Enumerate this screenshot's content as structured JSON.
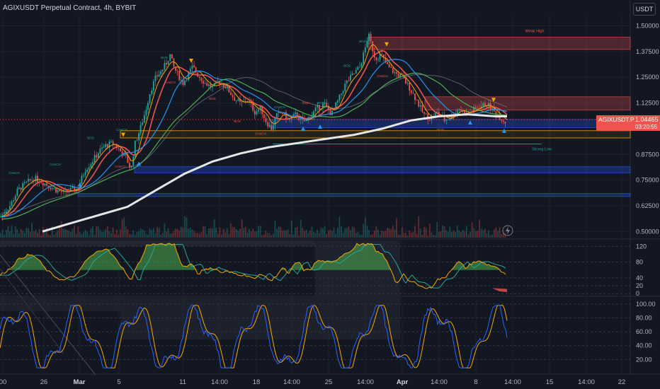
{
  "header": {
    "title": "AGIXUSDT Perpetual Contract, 4h, BYBIT",
    "currency": "USDT"
  },
  "price_tag": {
    "symbol": "AGIXUSDT.P",
    "price": "1.04465",
    "countdown": "03:20:55"
  },
  "colors": {
    "background": "#131722",
    "up": "#26a69a",
    "down": "#ef5350",
    "sma200": "#e6e6e6",
    "accent_blue": "#2962ff"
  },
  "chart_data": [
    {
      "type": "candlestick",
      "panel": "price",
      "y_ticks": [
        "1.50000",
        "1.37500",
        "1.25000",
        "1.12500",
        "0.87500",
        "0.75000",
        "0.62500",
        "0.50000"
      ],
      "ylim": [
        0.47,
        1.55
      ],
      "x_tick_labels": [
        "00",
        "26",
        "Mar",
        "5",
        "11",
        "14:00",
        "18",
        "14:00",
        "25",
        "14:00",
        "Apr",
        "14:00",
        "8",
        "14:00",
        "15",
        "14:00",
        "22"
      ],
      "annotations": [
        "Weak High",
        "Strong Low",
        "BOS",
        "CHoCH",
        "EQH"
      ],
      "close_path": [
        [
          0,
          0.57
        ],
        [
          15,
          0.63
        ],
        [
          25,
          0.7
        ],
        [
          35,
          0.73
        ],
        [
          48,
          0.76
        ],
        [
          60,
          0.74
        ],
        [
          70,
          0.72
        ],
        [
          80,
          0.7
        ],
        [
          90,
          0.69
        ],
        [
          100,
          0.7
        ],
        [
          110,
          0.71
        ],
        [
          120,
          0.8
        ],
        [
          130,
          0.84
        ],
        [
          140,
          0.89
        ],
        [
          150,
          0.92
        ],
        [
          160,
          0.93
        ],
        [
          170,
          0.89
        ],
        [
          178,
          0.86
        ],
        [
          185,
          0.8
        ],
        [
          190,
          0.92
        ],
        [
          198,
          1.0
        ],
        [
          205,
          1.08
        ],
        [
          212,
          1.18
        ],
        [
          220,
          1.25
        ],
        [
          228,
          1.28
        ],
        [
          235,
          1.32
        ],
        [
          240,
          1.36
        ],
        [
          245,
          1.3
        ],
        [
          250,
          1.27
        ],
        [
          258,
          1.22
        ],
        [
          265,
          1.26
        ],
        [
          272,
          1.3
        ],
        [
          280,
          1.26
        ],
        [
          290,
          1.22
        ],
        [
          300,
          1.2
        ],
        [
          310,
          1.23
        ],
        [
          320,
          1.2
        ],
        [
          330,
          1.15
        ],
        [
          340,
          1.12
        ],
        [
          350,
          1.14
        ],
        [
          360,
          1.08
        ],
        [
          368,
          1.1
        ],
        [
          375,
          1.04
        ],
        [
          383,
          1.0
        ],
        [
          390,
          1.06
        ],
        [
          398,
          1.08
        ],
        [
          408,
          1.04
        ],
        [
          418,
          1.07
        ],
        [
          428,
          1.03
        ],
        [
          438,
          1.06
        ],
        [
          448,
          1.1
        ],
        [
          458,
          1.12
        ],
        [
          468,
          1.07
        ],
        [
          478,
          1.14
        ],
        [
          488,
          1.22
        ],
        [
          498,
          1.26
        ],
        [
          508,
          1.3
        ],
        [
          515,
          1.38
        ],
        [
          520,
          1.46
        ],
        [
          525,
          1.4
        ],
        [
          530,
          1.34
        ],
        [
          538,
          1.36
        ],
        [
          548,
          1.3
        ],
        [
          558,
          1.27
        ],
        [
          568,
          1.25
        ],
        [
          578,
          1.2
        ],
        [
          588,
          1.14
        ],
        [
          598,
          1.07
        ],
        [
          608,
          1.05
        ],
        [
          618,
          1.08
        ],
        [
          628,
          1.04
        ],
        [
          638,
          1.06
        ],
        [
          648,
          1.1
        ],
        [
          658,
          1.07
        ],
        [
          668,
          1.09
        ],
        [
          678,
          1.11
        ],
        [
          688,
          1.12
        ],
        [
          698,
          1.08
        ],
        [
          708,
          1.05
        ],
        [
          714,
          1.03
        ]
      ],
      "sma200_path": [
        [
          60,
          0.5
        ],
        [
          100,
          0.54
        ],
        [
          140,
          0.58
        ],
        [
          180,
          0.62
        ],
        [
          220,
          0.7
        ],
        [
          260,
          0.78
        ],
        [
          300,
          0.84
        ],
        [
          340,
          0.88
        ],
        [
          380,
          0.91
        ],
        [
          420,
          0.93
        ],
        [
          460,
          0.95
        ],
        [
          500,
          0.97
        ],
        [
          540,
          1.0
        ],
        [
          580,
          1.04
        ],
        [
          620,
          1.06
        ],
        [
          660,
          1.07
        ],
        [
          700,
          1.06
        ],
        [
          716,
          1.06
        ]
      ],
      "zones": [
        {
          "label": "Weak High",
          "y_top": 1.445,
          "y_bottom": 1.385,
          "x_start": 520,
          "x_end": 890,
          "color": "#ef5350"
        },
        {
          "label": "",
          "y_top": 1.155,
          "y_bottom": 1.09,
          "x_start": 600,
          "x_end": 890,
          "color": "#ef5350"
        },
        {
          "label": "",
          "y_top": 1.045,
          "y_bottom": 1.005,
          "x_start": 380,
          "x_end": 890,
          "color": "#2962ff"
        },
        {
          "label": "",
          "y_top": 0.815,
          "y_bottom": 0.785,
          "x_start": 190,
          "x_end": 890,
          "color": "#2962ff"
        },
        {
          "label": "",
          "y_top": 0.685,
          "y_bottom": 0.67,
          "x_start": 110,
          "x_end": 890,
          "color": "#2962ff"
        }
      ],
      "strong_low": {
        "label": "Strong Low",
        "y": 0.925,
        "x_start": 385,
        "x_end": 765
      },
      "current_price": 1.04465
    },
    {
      "type": "area",
      "panel": "oscillator-1",
      "y_ticks": [
        "120",
        "80",
        "40",
        "20",
        "0"
      ],
      "ylim": [
        -5,
        135
      ]
    },
    {
      "type": "line",
      "panel": "stochastic",
      "y_ticks": [
        "100.00",
        "80.00",
        "60.00",
        "40.00",
        "20.00"
      ],
      "ylim": [
        0,
        110
      ]
    }
  ]
}
